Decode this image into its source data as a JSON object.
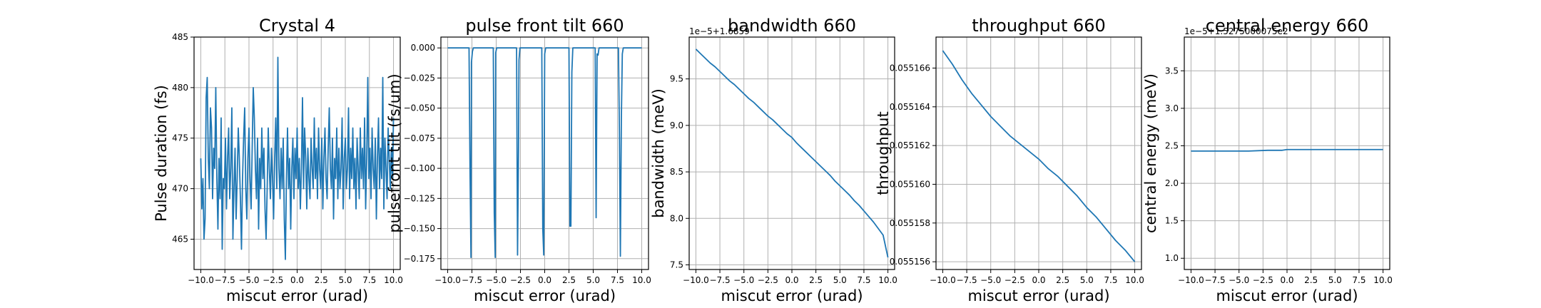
{
  "style": {
    "line_color": "#1f77b4",
    "grid": true
  },
  "chart_data": [
    {
      "type": "line",
      "title": "Crystal 4",
      "xlabel": "miscut error (urad)",
      "ylabel": "Pulse duration (fs)",
      "offset_text": "",
      "xlim": [
        -10.7,
        10.7
      ],
      "ylim": [
        462,
        485
      ],
      "xticks": [
        -10.0,
        -7.5,
        -5.0,
        -2.5,
        0.0,
        2.5,
        5.0,
        7.5,
        10.0
      ],
      "xtick_labels": [
        "−10.0",
        "−7.5",
        "−5.0",
        "−2.5",
        "0.0",
        "2.5",
        "5.0",
        "7.5",
        "10.0"
      ],
      "yticks": [
        465,
        470,
        475,
        480,
        485
      ],
      "ytick_labels": [
        "465",
        "470",
        "475",
        "480",
        "485"
      ],
      "series": [
        {
          "x_range": [
            -10,
            10
          ],
          "values": [
            473,
            468,
            471,
            465,
            467,
            479,
            481,
            473,
            470,
            478,
            476,
            469,
            474,
            472,
            480,
            471,
            466,
            473,
            469,
            477,
            464,
            471,
            470,
            475,
            468,
            473,
            476,
            469,
            472,
            478,
            465,
            470,
            474,
            467,
            471,
            476,
            473,
            469,
            464,
            471,
            475,
            478,
            470,
            467,
            473,
            476,
            471,
            468,
            474,
            480,
            477,
            472,
            469,
            475,
            466,
            473,
            470,
            476,
            471,
            474,
            468,
            465,
            470,
            476,
            472,
            469,
            474,
            471,
            467,
            473,
            477,
            470,
            483,
            472,
            469,
            474,
            470,
            475,
            467,
            463,
            471,
            476,
            470,
            473,
            466,
            472,
            475,
            469,
            474,
            471,
            476,
            470,
            473,
            468,
            472,
            479,
            470,
            476,
            473,
            468,
            474,
            471,
            469,
            475,
            472,
            470,
            477,
            471,
            474,
            469,
            476,
            472,
            470,
            475,
            468,
            473,
            476,
            471,
            469,
            474,
            478,
            472,
            470,
            475,
            467,
            473,
            471,
            476,
            469,
            474,
            470,
            472,
            477,
            468,
            473,
            475,
            470,
            472,
            478,
            469,
            474,
            471,
            476,
            470,
            473,
            468,
            475,
            472,
            469,
            476,
            471,
            474,
            470,
            477,
            468,
            473,
            481,
            471,
            474,
            469,
            476,
            472,
            470,
            475,
            467,
            473,
            477,
            470,
            474,
            471,
            481,
            468,
            475,
            472,
            469,
            476,
            473,
            470,
            474,
            471,
            477
          ]
        }
      ]
    },
    {
      "type": "line",
      "title": "pulse front tilt 660",
      "xlabel": "miscut error (urad)",
      "ylabel": "pulsefront tilt (fs/um)",
      "offset_text": "",
      "xlim": [
        -10.7,
        10.7
      ],
      "ylim": [
        -0.184,
        0.009
      ],
      "xticks": [
        -10.0,
        -7.5,
        -5.0,
        -2.5,
        0.0,
        2.5,
        5.0,
        7.5,
        10.0
      ],
      "xtick_labels": [
        "−10.0",
        "−7.5",
        "−5.0",
        "−2.5",
        "0.0",
        "2.5",
        "5.0",
        "7.5",
        "10.0"
      ],
      "yticks": [
        0.0,
        -0.025,
        -0.05,
        -0.075,
        -0.1,
        -0.125,
        -0.15,
        -0.175
      ],
      "ytick_labels": [
        "0.000",
        "−0.025",
        "−0.050",
        "−0.075",
        "−0.100",
        "−0.125",
        "−0.150",
        "−0.175"
      ],
      "series": [
        {
          "x": [
            -10,
            -7.8,
            -7.7,
            -7.6,
            -7.55,
            -7.45,
            -7.35,
            -7.3,
            -5.3,
            -5.2,
            -5.1,
            -5.05,
            -4.95,
            -4.8,
            -2.9,
            -2.8,
            -2.7,
            -2.65,
            -2.55,
            -2.45,
            -0.3,
            -0.2,
            -0.1,
            0.0,
            0.1,
            2.5,
            2.6,
            2.7,
            2.8,
            2.9,
            3.0,
            5.2,
            5.3,
            5.4,
            5.5,
            5.6,
            7.6,
            7.7,
            7.8,
            7.9,
            8.0,
            8.1,
            10
          ],
          "y": [
            0,
            0,
            -0.1,
            -0.174,
            -0.012,
            -0.003,
            0,
            0,
            0,
            -0.137,
            -0.174,
            -0.004,
            0,
            0,
            0,
            -0.172,
            -0.085,
            -0.01,
            0,
            0,
            0,
            -0.15,
            -0.172,
            -0.005,
            0,
            0,
            -0.148,
            -0.148,
            -0.02,
            0,
            0,
            0,
            -0.141,
            -0.005,
            -0.006,
            0,
            0,
            -0.07,
            -0.173,
            -0.06,
            -0.005,
            0,
            0
          ]
        }
      ]
    },
    {
      "type": "line",
      "title": "bandwidth 660",
      "xlabel": "miscut error (urad)",
      "ylabel": "bandwidth (meV)",
      "offset_text": "1e−5+1.6859",
      "xlim": [
        -10.7,
        10.7
      ],
      "ylim": [
        7.45,
        9.95
      ],
      "xticks": [
        -10.0,
        -7.5,
        -5.0,
        -2.5,
        0.0,
        2.5,
        5.0,
        7.5,
        10.0
      ],
      "xtick_labels": [
        "−10.0",
        "−7.5",
        "−5.0",
        "−2.5",
        "0.0",
        "2.5",
        "5.0",
        "7.5",
        "10.0"
      ],
      "yticks": [
        7.5,
        8.0,
        8.5,
        9.0,
        9.5
      ],
      "ytick_labels": [
        "7.5",
        "8.0",
        "8.5",
        "9.0",
        "9.5"
      ],
      "series": [
        {
          "x": [
            -10,
            -9.5,
            -9,
            -8.5,
            -8,
            -7.5,
            -7,
            -6.5,
            -6,
            -5.5,
            -5,
            -4.5,
            -4,
            -3.5,
            -3,
            -2.5,
            -2,
            -1.5,
            -1,
            -0.5,
            0,
            0.5,
            1,
            1.5,
            2,
            2.5,
            3,
            3.5,
            4,
            4.5,
            5,
            5.5,
            6,
            6.5,
            7,
            7.5,
            8,
            8.5,
            9,
            9.5,
            10
          ],
          "y": [
            9.82,
            9.77,
            9.72,
            9.67,
            9.63,
            9.58,
            9.53,
            9.48,
            9.44,
            9.39,
            9.34,
            9.29,
            9.25,
            9.2,
            9.15,
            9.1,
            9.06,
            9.01,
            8.96,
            8.91,
            8.87,
            8.81,
            8.76,
            8.71,
            8.66,
            8.61,
            8.56,
            8.51,
            8.46,
            8.4,
            8.35,
            8.3,
            8.25,
            8.19,
            8.14,
            8.08,
            8.02,
            7.96,
            7.89,
            7.82,
            7.58
          ]
        }
      ]
    },
    {
      "type": "line",
      "title": "throughput 660",
      "xlabel": "miscut error (urad)",
      "ylabel": "throughput",
      "offset_text": "",
      "xlim": [
        -10.7,
        10.7
      ],
      "ylim": [
        0.0551556,
        0.0551676
      ],
      "xticks": [
        -10.0,
        -7.5,
        -5.0,
        -2.5,
        0.0,
        2.5,
        5.0,
        7.5,
        10.0
      ],
      "xtick_labels": [
        "−10.0",
        "−7.5",
        "−5.0",
        "−2.5",
        "0.0",
        "2.5",
        "5.0",
        "7.5",
        "10.0"
      ],
      "yticks": [
        0.055156,
        0.055158,
        0.05516,
        0.055162,
        0.055164,
        0.055166
      ],
      "ytick_labels": [
        "0.055156",
        "0.055158",
        "0.055160",
        "0.055162",
        "0.055164",
        "0.055166"
      ],
      "series": [
        {
          "x": [
            -10,
            -9,
            -8,
            -7,
            -6,
            -5,
            -4,
            -3,
            -2,
            -1,
            0,
            1,
            2,
            3,
            4,
            5,
            6,
            7,
            8,
            9,
            10
          ],
          "y": [
            0.0551669,
            0.0551662,
            0.0551654,
            0.0551647,
            0.0551641,
            0.0551635,
            0.055163,
            0.0551625,
            0.0551621,
            0.0551617,
            0.0551613,
            0.0551608,
            0.0551604,
            0.0551599,
            0.0551594,
            0.0551588,
            0.0551583,
            0.0551577,
            0.0551571,
            0.0551566,
            0.055156
          ]
        }
      ]
    },
    {
      "type": "line",
      "title": "central energy 660",
      "xlabel": "miscut error (urad)",
      "ylabel": "central energy (meV)",
      "offset_text": "1e−5+1.5275000075e2",
      "xlim": [
        -10.7,
        10.7
      ],
      "ylim": [
        0.85,
        3.95
      ],
      "xticks": [
        -10.0,
        -7.5,
        -5.0,
        -2.5,
        0.0,
        2.5,
        5.0,
        7.5,
        10.0
      ],
      "xtick_labels": [
        "−10.0",
        "−7.5",
        "−5.0",
        "−2.5",
        "0.0",
        "2.5",
        "5.0",
        "7.5",
        "10.0"
      ],
      "yticks": [
        1.0,
        1.5,
        2.0,
        2.5,
        3.0,
        3.5
      ],
      "ytick_labels": [
        "1.0",
        "1.5",
        "2.0",
        "2.5",
        "3.0",
        "3.5"
      ],
      "series": [
        {
          "x": [
            -10,
            -8,
            -6,
            -4,
            -2,
            -1,
            -0.5,
            0,
            2,
            4,
            6,
            8,
            10
          ],
          "y": [
            2.43,
            2.43,
            2.43,
            2.43,
            2.44,
            2.44,
            2.44,
            2.45,
            2.45,
            2.45,
            2.45,
            2.45,
            2.45
          ]
        }
      ]
    }
  ]
}
